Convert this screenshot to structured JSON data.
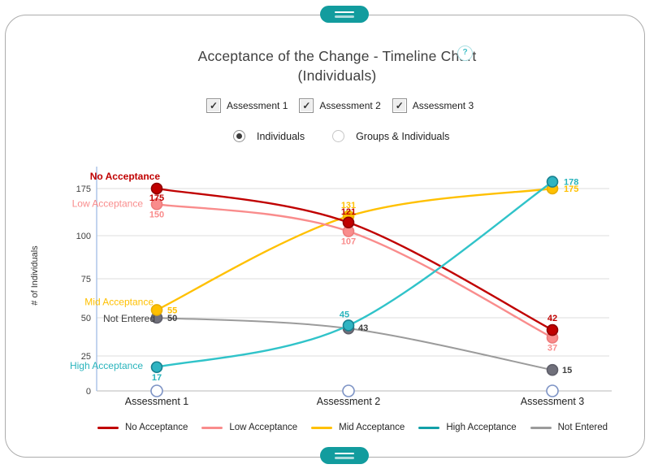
{
  "title": {
    "line1": "Acceptance of the Change - Timeline Chart",
    "line2": "(Individuals)"
  },
  "icons": {
    "help_glyph": "?",
    "checkbox_check": "✓"
  },
  "filters": {
    "assessments": [
      {
        "label": "Assessment 1",
        "checked": true
      },
      {
        "label": "Assessment 2",
        "checked": true
      },
      {
        "label": "Assessment 3",
        "checked": true
      }
    ]
  },
  "view_mode": {
    "options": [
      {
        "label": "Individuals",
        "selected": true
      },
      {
        "label": "Groups & Individuals",
        "selected": false
      }
    ]
  },
  "chart_data": {
    "type": "line",
    "title": "Acceptance of the Change - Timeline Chart (Individuals)",
    "categories": [
      "Assessment 1",
      "Assessment 2",
      "Assessment 3"
    ],
    "ylabel": "# of Individuals",
    "yticks": [
      0,
      25,
      50,
      75,
      100,
      175
    ],
    "ylim": [
      0,
      185
    ],
    "grid": true,
    "smooth": true,
    "legend_position": "bottom",
    "series": [
      {
        "name": "No Acceptance",
        "values": [
          175,
          121,
          42
        ],
        "color": "#C00000",
        "marker_stroke": "#8E0000",
        "label_color": "#C00000",
        "line_width": 2.4,
        "name_bold": true,
        "name_dx": 4,
        "name_dy": -11,
        "labels": [
          [
            0,
            15,
            "middle"
          ],
          [
            0,
            -10,
            "middle"
          ],
          [
            0,
            -11,
            "middle"
          ]
        ]
      },
      {
        "name": "Low Acceptance",
        "values": [
          150,
          107,
          37
        ],
        "color": "#F98C8C",
        "marker_stroke": "#EC7A7A",
        "label_color": "#F98C8C",
        "line_width": 2.4,
        "name_bold": false,
        "name_dx": -17,
        "name_dy": 3,
        "labels": [
          [
            0,
            16,
            "middle"
          ],
          [
            0,
            16,
            "middle"
          ],
          [
            0,
            16,
            "middle"
          ]
        ]
      },
      {
        "name": "Mid Acceptance",
        "values": [
          55,
          131,
          175
        ],
        "color": "#FFC000",
        "marker_stroke": "#E8AE00",
        "label_color": "#FFC000",
        "line_width": 2.4,
        "name_bold": false,
        "name_dx": -4,
        "name_dy": -6,
        "labels": [
          [
            13,
            4,
            "start"
          ],
          [
            0,
            -10,
            "middle"
          ],
          [
            14,
            4,
            "start"
          ]
        ]
      },
      {
        "name": "High Acceptance",
        "values": [
          17,
          45,
          178
        ],
        "color": "#30C3C9",
        "marker_fill": "#2FB4C2",
        "marker_stroke": "#18808F",
        "label_color": "#29B4BC",
        "legend_color": "#12A0A8",
        "line_width": 2.4,
        "name_bold": false,
        "name_dx": -17,
        "name_dy": 2,
        "labels": [
          [
            0,
            16,
            "middle"
          ],
          [
            -5,
            -10,
            "middle"
          ],
          [
            14,
            4,
            "start"
          ]
        ]
      },
      {
        "name": "Not Entered",
        "values": [
          50,
          43,
          15
        ],
        "color": "#9B9B9B",
        "marker_fill": "#70707B",
        "marker_stroke": "#5E5E69",
        "label_color": "#3F3F3F",
        "line_width": 2.0,
        "name_bold": false,
        "name_dx": -2,
        "name_dy": 5,
        "labels": [
          [
            13,
            4,
            "start"
          ],
          [
            12,
            3,
            "start"
          ],
          [
            12,
            4,
            "start"
          ]
        ]
      }
    ]
  },
  "colors": {
    "window_border": "#ACACAC",
    "handle_teal": "#129C9E",
    "title_text": "#3F3F3F",
    "grid_line": "#DCDCDC",
    "x_axis_line": "#C6C6C6",
    "y_axis_line": "#ADC6E8",
    "axis_node_stroke": "#7D93C5",
    "tick_text": "#404040",
    "category_text": "#222222"
  }
}
